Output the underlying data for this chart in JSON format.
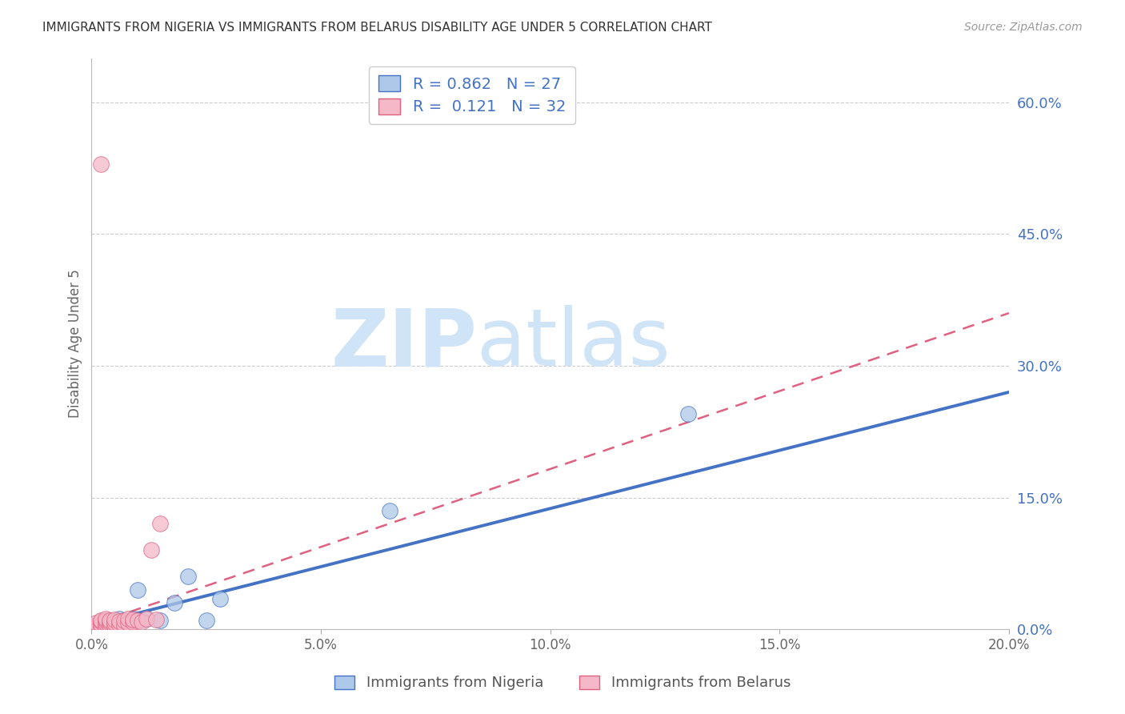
{
  "title": "IMMIGRANTS FROM NIGERIA VS IMMIGRANTS FROM BELARUS DISABILITY AGE UNDER 5 CORRELATION CHART",
  "source": "Source: ZipAtlas.com",
  "ylabel": "Disability Age Under 5",
  "xlim": [
    0.0,
    0.2
  ],
  "ylim": [
    0.0,
    0.65
  ],
  "xticks": [
    0.0,
    0.05,
    0.1,
    0.15,
    0.2
  ],
  "yticks_right": [
    0.0,
    0.15,
    0.3,
    0.45,
    0.6
  ],
  "nigeria_label": "Immigrants from Nigeria",
  "belarus_label": "Immigrants from Belarus",
  "nigeria_R": "0.862",
  "nigeria_N": "27",
  "belarus_R": "0.121",
  "belarus_N": "32",
  "nigeria_color": "#adc8e8",
  "nigeria_line_color": "#4472c4",
  "nigeria_edge_color": "#4472c4",
  "belarus_color": "#f4b8c8",
  "belarus_line_color": "#e06080",
  "belarus_edge_color": "#e06080",
  "watermark_zip": "ZIP",
  "watermark_atlas": "atlas",
  "watermark_color": "#d0e4f8",
  "nigeria_x": [
    0.001,
    0.001,
    0.002,
    0.002,
    0.002,
    0.003,
    0.003,
    0.003,
    0.004,
    0.004,
    0.005,
    0.005,
    0.006,
    0.006,
    0.007,
    0.008,
    0.009,
    0.01,
    0.011,
    0.012,
    0.015,
    0.018,
    0.021,
    0.025,
    0.028,
    0.065,
    0.13
  ],
  "nigeria_y": [
    0.002,
    0.004,
    0.003,
    0.006,
    0.008,
    0.004,
    0.007,
    0.009,
    0.005,
    0.01,
    0.003,
    0.008,
    0.006,
    0.012,
    0.01,
    0.008,
    0.012,
    0.045,
    0.01,
    0.012,
    0.01,
    0.03,
    0.06,
    0.01,
    0.035,
    0.135,
    0.245
  ],
  "belarus_x": [
    0.001,
    0.001,
    0.001,
    0.002,
    0.002,
    0.002,
    0.002,
    0.003,
    0.003,
    0.003,
    0.003,
    0.004,
    0.004,
    0.004,
    0.005,
    0.005,
    0.005,
    0.006,
    0.006,
    0.007,
    0.007,
    0.008,
    0.008,
    0.009,
    0.009,
    0.01,
    0.011,
    0.012,
    0.013,
    0.014,
    0.002,
    0.015
  ],
  "belarus_y": [
    0.003,
    0.005,
    0.007,
    0.004,
    0.006,
    0.009,
    0.01,
    0.003,
    0.007,
    0.01,
    0.012,
    0.005,
    0.008,
    0.01,
    0.004,
    0.007,
    0.011,
    0.006,
    0.009,
    0.005,
    0.01,
    0.007,
    0.012,
    0.008,
    0.011,
    0.01,
    0.008,
    0.012,
    0.09,
    0.011,
    0.53,
    0.12
  ],
  "nigeria_trendline_x": [
    0.0,
    0.2
  ],
  "nigeria_trendline_y": [
    0.005,
    0.27
  ],
  "belarus_trendline_x": [
    0.0,
    0.2
  ],
  "belarus_trendline_y": [
    0.005,
    0.36
  ]
}
